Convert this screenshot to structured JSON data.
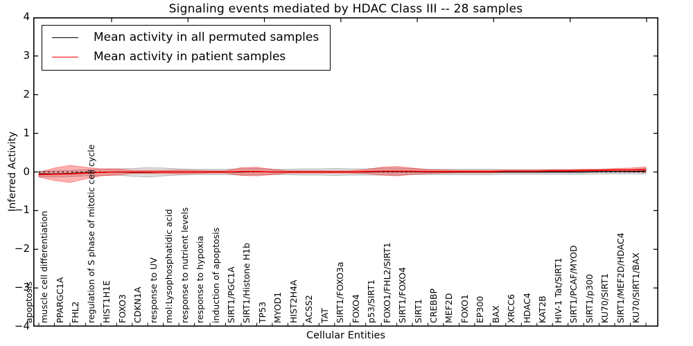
{
  "figure": {
    "title": "Signaling events mediated by HDAC Class III -- 28 samples",
    "xlabel": "Cellular Entities",
    "ylabel": "Inferred Activity"
  },
  "legend": {
    "items": [
      {
        "label": "Mean activity in all permuted samples",
        "color": "#000000"
      },
      {
        "label": "Mean activity in patient samples",
        "color": "#ff0000"
      }
    ],
    "position": "upper left"
  },
  "chart_data": {
    "type": "line",
    "title": "Signaling events mediated by HDAC Class III -- 28 samples",
    "xlabel": "Cellular Entities",
    "ylabel": "Inferred Activity",
    "ylim": [
      -4,
      4
    ],
    "yticks": [
      4,
      3,
      2,
      1,
      0,
      -1,
      -2,
      -3,
      -4
    ],
    "grid": false,
    "legend_position": "upper left",
    "categories": [
      "apoptosis",
      "muscle cell differentiation",
      "PPARGC1A",
      "FHL2",
      "regulation of S phase of mitotic cell cycle",
      "HIST1H1E",
      "FOXO3",
      "CDKN1A",
      "response to UV",
      "mol:Lysophosphatidic acid",
      "response to nutrient levels",
      "response to hypoxia",
      "induction of apoptosis",
      "SIRT1/PGC1A",
      "SIRT1/Histone H1b",
      "TP53",
      "MYOD1",
      "HIST2H4A",
      "ACSS2",
      "TAT",
      "SIRT1/FOXO3a",
      "FOXO4",
      "p53/SIRT1",
      "FOXO1/FHL2/SIRT1",
      "SIRT1/FOXO4",
      "SIRT1",
      "CREBBP",
      "MEF2D",
      "FOXO1",
      "EP300",
      "BAX",
      "XRCC6",
      "HDAC4",
      "KAT2B",
      "HIV-1 Tat/SIRT1",
      "SIRT1/PCAF/MYOD",
      "SIRT1/p300",
      "KU70/SIRT1",
      "SIRT1/MEF2D/HDAC4",
      "KU70/SIRT1/BAX"
    ],
    "series": [
      {
        "name": "Mean activity in all permuted samples",
        "color": "#000000",
        "style": "solid",
        "values": [
          -0.05,
          -0.05,
          -0.04,
          -0.02,
          -0.01,
          0.0,
          -0.01,
          -0.01,
          0.0,
          0.0,
          0.0,
          0.0,
          0.0,
          0.0,
          0.01,
          0.0,
          0.0,
          0.0,
          0.0,
          0.0,
          0.0,
          0.0,
          0.01,
          0.01,
          0.01,
          0.0,
          0.0,
          0.0,
          0.0,
          0.0,
          0.0,
          0.0,
          0.0,
          0.0,
          0.0,
          0.0,
          0.01,
          0.01,
          0.01,
          0.02
        ]
      },
      {
        "name": "Mean activity in patient samples",
        "color": "#ff0000",
        "style": "solid",
        "values": [
          -0.07,
          -0.06,
          -0.05,
          -0.03,
          -0.01,
          0.0,
          0.0,
          0.0,
          0.0,
          0.0,
          0.0,
          0.0,
          0.0,
          0.01,
          0.01,
          0.0,
          0.0,
          0.0,
          0.0,
          0.0,
          0.0,
          0.01,
          0.02,
          0.02,
          0.02,
          0.01,
          0.01,
          0.01,
          0.01,
          0.01,
          0.02,
          0.02,
          0.02,
          0.03,
          0.03,
          0.04,
          0.04,
          0.05,
          0.05,
          0.06
        ]
      },
      {
        "name": "zero baseline",
        "color": "#000000",
        "style": "dashed",
        "constant": 0
      }
    ],
    "bands": [
      {
        "name": "permuted samples spread",
        "fill": "rgba(125,125,125,0.25)",
        "edge": "rgba(110,110,110,0.45)",
        "center_series": 0,
        "halfwidths": [
          0.07,
          0.08,
          0.08,
          0.08,
          0.08,
          0.08,
          0.1,
          0.12,
          0.1,
          0.08,
          0.07,
          0.07,
          0.07,
          0.08,
          0.08,
          0.07,
          0.07,
          0.08,
          0.08,
          0.09,
          0.08,
          0.08,
          0.09,
          0.09,
          0.08,
          0.07,
          0.07,
          0.07,
          0.07,
          0.07,
          0.06,
          0.06,
          0.06,
          0.06,
          0.06,
          0.06,
          0.06,
          0.06,
          0.06,
          0.07
        ]
      },
      {
        "name": "patient samples spread",
        "fill": "rgba(255,0,0,0.30)",
        "edge": "rgba(255,0,0,0.40)",
        "center_series": 1,
        "halfwidths": [
          0.06,
          0.16,
          0.22,
          0.15,
          0.09,
          0.08,
          0.04,
          0.04,
          0.04,
          0.05,
          0.04,
          0.03,
          0.03,
          0.1,
          0.11,
          0.07,
          0.03,
          0.03,
          0.03,
          0.03,
          0.03,
          0.05,
          0.1,
          0.12,
          0.08,
          0.05,
          0.04,
          0.03,
          0.03,
          0.03,
          0.03,
          0.03,
          0.03,
          0.03,
          0.03,
          0.03,
          0.03,
          0.04,
          0.05,
          0.07
        ]
      }
    ]
  }
}
